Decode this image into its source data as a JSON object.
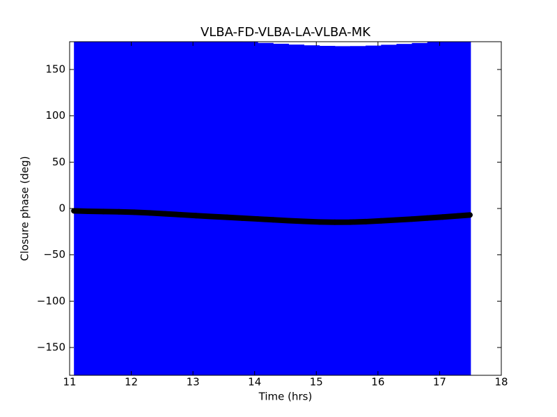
{
  "chart_data": {
    "type": "scatter",
    "title": "VLBA-FD-VLBA-LA-VLBA-MK",
    "x_label": "Time (hrs)",
    "y_label": "Closure phase (deg)",
    "x": [
      11.07,
      11.3,
      11.55,
      11.8,
      12.05,
      12.3,
      12.55,
      12.8,
      13.05,
      13.3,
      13.55,
      13.8,
      14.05,
      14.3,
      14.55,
      14.8,
      15.05,
      15.3,
      15.55,
      15.8,
      16.05,
      16.3,
      16.55,
      16.8,
      17.05,
      17.3,
      17.49
    ],
    "values": [
      -2.5,
      -3,
      -3.3,
      -3.6,
      -4,
      -4.8,
      -5.7,
      -6.7,
      -7.7,
      -8.6,
      -9.5,
      -10.4,
      -11.3,
      -12.2,
      -13.1,
      -13.9,
      -14.5,
      -14.8,
      -14.7,
      -14.2,
      -13.3,
      -12.4,
      -11.4,
      -10.3,
      -9.2,
      -8,
      -7
    ],
    "errors": [
      190,
      190,
      190,
      190,
      190,
      190,
      190,
      190,
      190,
      190,
      190,
      190,
      190,
      190,
      190,
      190,
      190,
      190,
      190,
      190,
      190,
      190,
      190,
      190,
      190,
      190,
      190
    ],
    "color": "#000000",
    "error_color": "#0000ff",
    "xlim": [
      11,
      18
    ],
    "xticks": [
      11,
      12,
      13,
      14,
      15,
      16,
      17,
      18
    ],
    "ylim": [
      -180,
      180
    ],
    "yticks": [
      -150,
      -100,
      -50,
      0,
      50,
      100,
      150
    ]
  }
}
